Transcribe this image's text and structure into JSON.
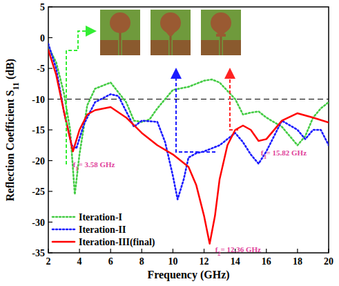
{
  "chart_data": {
    "type": "line",
    "xlabel": "Frequency (GHz)",
    "ylabel": "Reflection Coefficient S11 (dB)",
    "xlim": [
      2,
      20
    ],
    "ylim": [
      -35,
      5
    ],
    "xticks": [
      2,
      4,
      6,
      8,
      10,
      12,
      14,
      16,
      18,
      20
    ],
    "yticks": [
      -35,
      -30,
      -25,
      -20,
      -15,
      -10,
      -5,
      0,
      5
    ],
    "grid": false,
    "legend": "lower left",
    "reference_line": -10,
    "series": [
      {
        "name": "Iteration-I",
        "color": "#44cc44",
        "line_style": "dotted",
        "x": [
          2,
          2.5,
          3,
          3.4,
          3.7,
          4,
          4.5,
          5,
          6,
          7,
          7.5,
          8,
          8.5,
          9,
          10,
          11,
          12,
          12.5,
          13,
          14,
          14.5,
          15,
          15.5,
          16,
          17,
          18,
          18.5,
          19,
          19.5,
          20
        ],
        "values": [
          -1.5,
          -4,
          -9,
          -15,
          -25.5,
          -19,
          -11,
          -8.3,
          -7.3,
          -10.5,
          -13.5,
          -13.7,
          -13.3,
          -11.5,
          -8.5,
          -8,
          -7,
          -6.8,
          -7.3,
          -10,
          -12.5,
          -12.2,
          -12,
          -13,
          -14.5,
          -17.5,
          -16,
          -13,
          -11.5,
          -10.5
        ]
      },
      {
        "name": "Iteration-II",
        "color": "#1a1aff",
        "line_style": "dotted",
        "x": [
          2,
          2.5,
          3,
          3.5,
          3.8,
          4.3,
          5,
          6,
          6.5,
          7,
          7.5,
          8,
          9,
          9.5,
          10,
          10.3,
          10.7,
          11,
          11.5,
          12,
          13,
          14,
          14.5,
          15,
          15.5,
          16,
          16.5,
          17,
          18,
          18.5,
          19,
          19.5,
          20
        ],
        "values": [
          -1,
          -5,
          -12,
          -17.5,
          -18,
          -14,
          -10.5,
          -9.2,
          -9.5,
          -12,
          -14.5,
          -13.5,
          -13.7,
          -17,
          -22.5,
          -26.3,
          -23,
          -19.5,
          -18.8,
          -18.5,
          -17.5,
          -15.5,
          -17,
          -19,
          -20.5,
          -18.5,
          -16,
          -13.5,
          -15,
          -16.5,
          -15,
          -15,
          -17.5
        ]
      },
      {
        "name": "Iteration-III(final)",
        "color": "#ff0000",
        "line_style": "solid",
        "x": [
          2,
          2.5,
          3,
          3.58,
          4,
          4.5,
          5,
          6,
          7,
          8,
          9,
          10,
          11,
          11.5,
          12,
          12.36,
          12.7,
          13,
          13.5,
          14,
          14.5,
          15,
          15.5,
          16,
          17,
          18,
          19,
          20
        ],
        "values": [
          -2,
          -6,
          -12,
          -18.5,
          -15,
          -12.5,
          -11.8,
          -11.3,
          -13,
          -15.5,
          -17.5,
          -19,
          -21,
          -24,
          -29,
          -33.5,
          -29,
          -23,
          -17.5,
          -15,
          -14.3,
          -15,
          -16.8,
          -16.5,
          -13.5,
          -12.3,
          -13,
          -13.8
        ]
      }
    ],
    "annotations": [
      {
        "text": "f1= 3.58 GHz",
        "x": 3.58,
        "y": -18.5
      },
      {
        "text": "f2= 12.36 GHz",
        "x": 12.36,
        "y": -33.5
      },
      {
        "text": "f3= 15.82 GHz",
        "x": 15.82,
        "y": -16.5
      }
    ]
  }
}
